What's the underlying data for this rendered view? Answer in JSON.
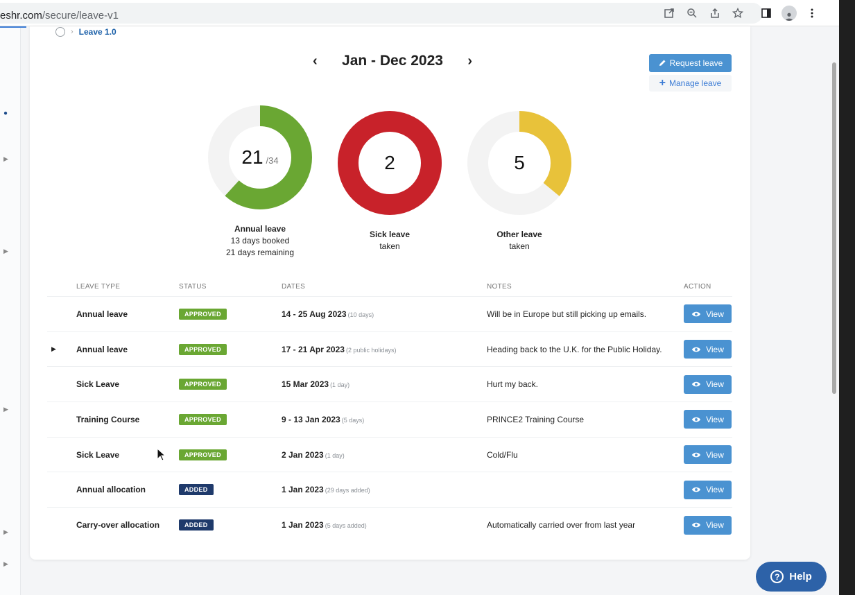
{
  "browser": {
    "url_host": "eshr.com",
    "url_path": "/secure/leave-v1"
  },
  "breadcrumb": {
    "current": "Leave 1.0"
  },
  "period": {
    "title": "Jan - Dec 2023",
    "prev": "‹",
    "next": "›"
  },
  "actions": {
    "request_label": "Request leave",
    "manage_label": "Manage leave"
  },
  "summary": {
    "annual": {
      "value": "21",
      "of": "/34",
      "title": "Annual leave",
      "line1": "13 days booked",
      "line2": "21 days remaining",
      "remaining_fraction": 0.6176,
      "color": "#6aa733"
    },
    "sick": {
      "value": "2",
      "title": "Sick leave",
      "line1": "taken",
      "fraction": 1.0,
      "color": "#c8222a"
    },
    "other": {
      "value": "5",
      "title": "Other leave",
      "line1": "taken",
      "fraction": 0.36,
      "color": "#e8c23a"
    }
  },
  "table": {
    "headers": {
      "type": "LEAVE TYPE",
      "status": "STATUS",
      "dates": "DATES",
      "notes": "NOTES",
      "action": "ACTION"
    },
    "rows": [
      {
        "type": "Annual leave",
        "status": "APPROVED",
        "dates": "14 - 25 Aug 2023",
        "sub": "(10 days)",
        "notes": "Will be in Europe but still picking up emails.",
        "action": "View"
      },
      {
        "type": "Annual leave",
        "status": "APPROVED",
        "dates": "17 - 21 Apr 2023",
        "sub": "(2 public holidays)",
        "notes": "Heading back to the U.K. for the Public Holiday.",
        "action": "View"
      },
      {
        "type": "Sick Leave",
        "status": "APPROVED",
        "dates": "15 Mar 2023",
        "sub": "(1 day)",
        "notes": "Hurt my back.",
        "action": "View"
      },
      {
        "type": "Training Course",
        "status": "APPROVED",
        "dates": "9 - 13 Jan 2023",
        "sub": "(5 days)",
        "notes": "PRINCE2 Training Course",
        "action": "View"
      },
      {
        "type": "Sick Leave",
        "status": "APPROVED",
        "dates": "2 Jan 2023",
        "sub": "(1 day)",
        "notes": "Cold/Flu",
        "action": "View"
      },
      {
        "type": "Annual allocation",
        "status": "ADDED",
        "dates": "1 Jan 2023",
        "sub": "(29 days added)",
        "notes": "",
        "action": "View"
      },
      {
        "type": "Carry-over allocation",
        "status": "ADDED",
        "dates": "1 Jan 2023",
        "sub": "(5 days added)",
        "notes": "Automatically carried over from last year",
        "action": "View"
      }
    ]
  },
  "help": {
    "label": "Help"
  },
  "colors": {
    "accent": "#4a92d1",
    "approved": "#6aa733",
    "added": "#1f3a6b",
    "help": "#2d62a8"
  }
}
